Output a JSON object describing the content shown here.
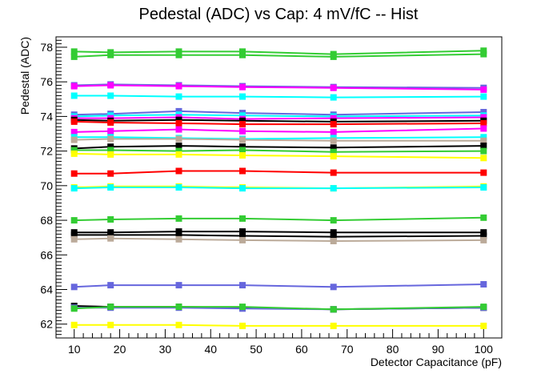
{
  "chart_data": {
    "type": "line",
    "title": "Pedestal (ADC) vs Cap: 4 mV/fC -- Hist",
    "xlabel": "Detector Capacitance (pF)",
    "ylabel": "Pedestal (ADC)",
    "xlim": [
      6,
      104
    ],
    "ylim": [
      61.2,
      78.6
    ],
    "xticks": [
      10,
      20,
      30,
      40,
      50,
      60,
      70,
      80,
      90,
      100
    ],
    "yticks": [
      62,
      64,
      66,
      68,
      70,
      72,
      74,
      76,
      78
    ],
    "grid": false,
    "legend": "none",
    "marker": "square",
    "x": [
      10,
      18,
      33,
      47,
      67,
      100
    ],
    "series": [
      {
        "color": "#33cc33",
        "values": [
          77.75,
          77.7,
          77.75,
          77.75,
          77.6,
          77.8
        ]
      },
      {
        "color": "#33cc33",
        "values": [
          77.45,
          77.55,
          77.55,
          77.55,
          77.45,
          77.6
        ]
      },
      {
        "color": "#6666dd",
        "values": [
          75.8,
          75.85,
          75.8,
          75.75,
          75.7,
          75.65
        ]
      },
      {
        "color": "#ff00ff",
        "values": [
          75.75,
          75.8,
          75.75,
          75.7,
          75.65,
          75.55
        ]
      },
      {
        "color": "#00ffff",
        "values": [
          75.2,
          75.2,
          75.15,
          75.15,
          75.1,
          75.15
        ]
      },
      {
        "color": "#6666dd",
        "values": [
          74.1,
          74.15,
          74.3,
          74.2,
          74.1,
          74.25
        ]
      },
      {
        "color": "#00ffff",
        "values": [
          74.0,
          74.05,
          74.1,
          74.05,
          74.0,
          74.05
        ]
      },
      {
        "color": "#ff00ff",
        "values": [
          73.9,
          73.9,
          73.95,
          73.85,
          73.9,
          73.95
        ]
      },
      {
        "color": "#000000",
        "values": [
          73.8,
          73.75,
          73.8,
          73.75,
          73.7,
          73.75
        ]
      },
      {
        "color": "#ff0000",
        "values": [
          73.7,
          73.65,
          73.6,
          73.55,
          73.55,
          73.6
        ]
      },
      {
        "color": "#ff00ff",
        "values": [
          73.1,
          73.15,
          73.25,
          73.15,
          73.1,
          73.3
        ]
      },
      {
        "color": "#00ffff",
        "values": [
          72.8,
          72.8,
          72.75,
          72.7,
          72.75,
          72.8
        ]
      },
      {
        "color": "#bbaa99",
        "values": [
          72.65,
          72.7,
          72.7,
          72.65,
          72.6,
          72.6
        ]
      },
      {
        "color": "#000000",
        "values": [
          72.15,
          72.25,
          72.3,
          72.25,
          72.2,
          72.3
        ]
      },
      {
        "color": "#33cc33",
        "values": [
          72.05,
          72.05,
          72.0,
          72.05,
          71.95,
          72.0
        ]
      },
      {
        "color": "#ffff00",
        "values": [
          71.85,
          71.8,
          71.8,
          71.75,
          71.7,
          71.6
        ]
      },
      {
        "color": "#ff0000",
        "values": [
          70.7,
          70.7,
          70.85,
          70.85,
          70.75,
          70.75
        ]
      },
      {
        "color": "#ffff00",
        "values": [
          69.9,
          69.95,
          69.95,
          69.9,
          69.85,
          69.95
        ]
      },
      {
        "color": "#00ffff",
        "values": [
          69.85,
          69.9,
          69.9,
          69.85,
          69.85,
          69.9
        ]
      },
      {
        "color": "#33cc33",
        "values": [
          68.0,
          68.05,
          68.1,
          68.1,
          68.0,
          68.15
        ]
      },
      {
        "color": "#000000",
        "values": [
          67.3,
          67.3,
          67.35,
          67.35,
          67.3,
          67.3
        ]
      },
      {
        "color": "#000000",
        "values": [
          67.15,
          67.15,
          67.15,
          67.1,
          67.05,
          67.1
        ]
      },
      {
        "color": "#bbaa99",
        "values": [
          66.9,
          66.95,
          66.9,
          66.85,
          66.8,
          66.85
        ]
      },
      {
        "color": "#6666dd",
        "values": [
          64.15,
          64.25,
          64.25,
          64.25,
          64.15,
          64.3
        ]
      },
      {
        "color": "#000000",
        "values": [
          63.05,
          63.0,
          63.0,
          62.95,
          62.85,
          62.95
        ]
      },
      {
        "color": "#6666dd",
        "values": [
          62.95,
          62.95,
          62.95,
          62.9,
          62.85,
          62.95
        ]
      },
      {
        "color": "#33cc33",
        "values": [
          62.9,
          63.0,
          63.0,
          63.0,
          62.85,
          63.0
        ]
      },
      {
        "color": "#ffff00",
        "values": [
          61.95,
          61.95,
          61.95,
          61.9,
          61.9,
          61.9
        ]
      }
    ]
  }
}
